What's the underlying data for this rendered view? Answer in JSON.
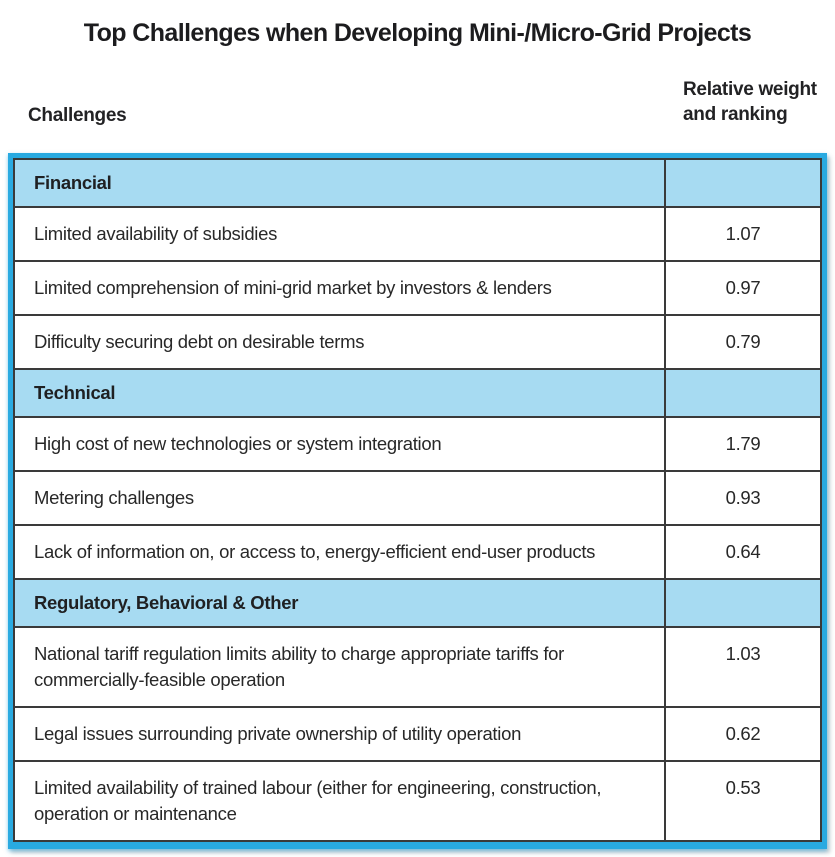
{
  "page": {
    "title": "Top Challenges when Developing Mini-/Micro-Grid Projects",
    "columns": {
      "challenges": "Challenges",
      "weight": "Relative weight and ranking"
    }
  },
  "colors": {
    "frame_blue": "#29aae1",
    "section_fill": "#a7dbf2",
    "grid_dark": "#3a3a3a",
    "text": "#282828"
  },
  "table": {
    "sections": [
      {
        "header": "Financial",
        "rows": [
          {
            "label": "Limited availability of subsidies",
            "value": "1.07"
          },
          {
            "label": "Limited comprehension of mini-grid market by investors & lenders",
            "value": "0.97"
          },
          {
            "label": "Difficulty securing debt on desirable terms",
            "value": "0.79"
          }
        ]
      },
      {
        "header": "Technical",
        "rows": [
          {
            "label": "High cost of new technologies or system integration",
            "value": "1.79"
          },
          {
            "label": "Metering challenges",
            "value": "0.93"
          },
          {
            "label": "Lack of information on, or access to, energy-efficient end-user products",
            "value": "0.64"
          }
        ]
      },
      {
        "header": "Regulatory, Behavioral & Other",
        "rows": [
          {
            "label": "National tariff regulation limits ability to charge appropriate tariffs for commercially-feasible operation",
            "value": "1.03"
          },
          {
            "label": "Legal issues surrounding private ownership of utility operation",
            "value": "0.62"
          },
          {
            "label": "Limited availability of trained labour (either for engineering, construction, operation or maintenance",
            "value": "0.53"
          }
        ]
      }
    ]
  },
  "chart_data": {
    "type": "table",
    "title": "Top Challenges when Developing Mini-/Micro-Grid Projects",
    "columns": [
      "Challenges",
      "Relative weight and ranking"
    ],
    "groups": [
      {
        "name": "Financial",
        "items": [
          "Limited availability of subsidies",
          "Limited comprehension of mini-grid market by investors & lenders",
          "Difficulty securing debt on desirable terms"
        ],
        "values": [
          1.07,
          0.97,
          0.79
        ]
      },
      {
        "name": "Technical",
        "items": [
          "High cost of new technologies or system integration",
          "Metering challenges",
          "Lack of information on, or access to, energy-efficient end-user products"
        ],
        "values": [
          1.79,
          0.93,
          0.64
        ]
      },
      {
        "name": "Regulatory, Behavioral & Other",
        "items": [
          "National tariff regulation limits ability to charge appropriate tariffs for commercially-feasible operation",
          "Legal issues surrounding private ownership of utility operation",
          "Limited availability of trained labour (either for engineering, construction, operation or maintenance"
        ],
        "values": [
          1.03,
          0.62,
          0.53
        ]
      }
    ]
  }
}
